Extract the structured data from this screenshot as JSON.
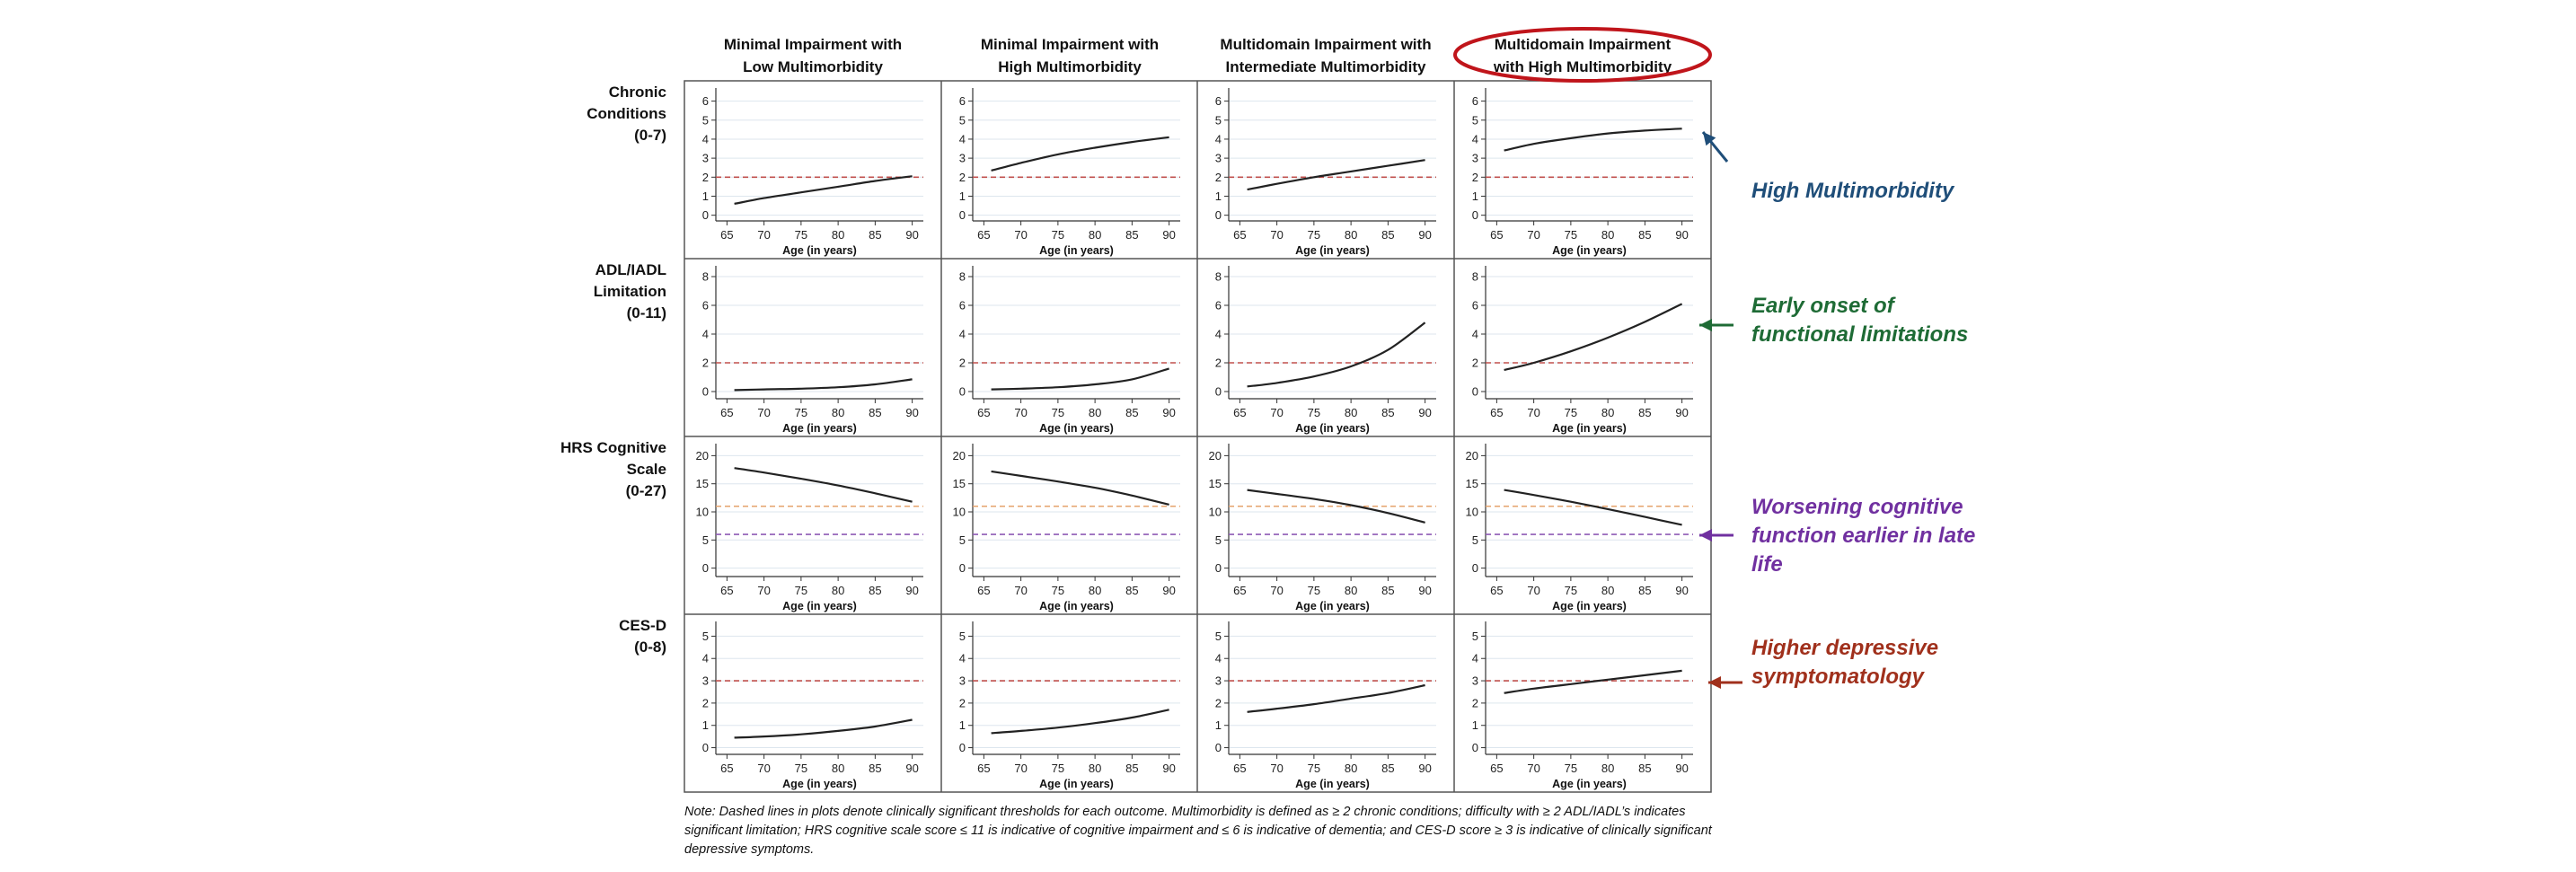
{
  "chart_data": {
    "type": "line",
    "col_headers": [
      [
        "Minimal Impairment with",
        "Low Multimorbidity"
      ],
      [
        "Minimal Impairment with",
        "High Multimorbidity"
      ],
      [
        "Multidomain Impairment with",
        "Intermediate Multimorbidity"
      ],
      [
        "Multidomain Impairment",
        "with High Multimorbidity"
      ]
    ],
    "highlighted_col": 3,
    "highlight_color": "#c0151b",
    "xlabel": "Age (in years)",
    "x_ticks": [
      65,
      70,
      75,
      80,
      85,
      90
    ],
    "x_range": [
      63.5,
      91.5
    ],
    "grid": "horizontal",
    "rows": [
      {
        "label": [
          "Chronic",
          "Conditions",
          "(0-7)"
        ],
        "ylim": [
          -0.3,
          6.5
        ],
        "y_ticks": [
          0,
          1,
          2,
          3,
          4,
          5,
          6
        ],
        "thresholds": [
          {
            "value": 2,
            "color": "#c0504d"
          }
        ],
        "series": [
          {
            "x": [
              66,
              70,
              75,
              80,
              85,
              90
            ],
            "y": [
              0.6,
              0.9,
              1.2,
              1.5,
              1.8,
              2.05
            ]
          },
          {
            "x": [
              66,
              70,
              75,
              80,
              85,
              90
            ],
            "y": [
              2.35,
              2.75,
              3.2,
              3.55,
              3.85,
              4.1
            ]
          },
          {
            "x": [
              66,
              70,
              75,
              80,
              85,
              90
            ],
            "y": [
              1.35,
              1.65,
              2.0,
              2.3,
              2.6,
              2.9
            ]
          },
          {
            "x": [
              66,
              70,
              75,
              80,
              85,
              90
            ],
            "y": [
              3.4,
              3.75,
              4.05,
              4.3,
              4.45,
              4.55
            ]
          }
        ],
        "annotation": {
          "lines": [
            "High  Multimorbidity"
          ],
          "color": "#1f4e79"
        }
      },
      {
        "label": [
          "ADL/IADL",
          "Limitation",
          "(0-11)"
        ],
        "ylim": [
          -0.5,
          8.5
        ],
        "y_ticks": [
          0,
          2,
          4,
          6,
          8
        ],
        "thresholds": [
          {
            "value": 2,
            "color": "#c0504d"
          }
        ],
        "series": [
          {
            "x": [
              66,
              70,
              75,
              80,
              85,
              90
            ],
            "y": [
              0.1,
              0.15,
              0.2,
              0.3,
              0.5,
              0.85
            ]
          },
          {
            "x": [
              66,
              70,
              75,
              80,
              85,
              90
            ],
            "y": [
              0.15,
              0.2,
              0.3,
              0.5,
              0.85,
              1.6
            ]
          },
          {
            "x": [
              66,
              70,
              75,
              80,
              85,
              90
            ],
            "y": [
              0.35,
              0.6,
              1.05,
              1.75,
              2.9,
              4.8
            ]
          },
          {
            "x": [
              66,
              70,
              75,
              80,
              85,
              90
            ],
            "y": [
              1.5,
              2.0,
              2.8,
              3.75,
              4.85,
              6.1
            ]
          }
        ],
        "annotation": {
          "lines": [
            "Early onset of",
            "functional  limitations"
          ],
          "color": "#1e6b35"
        }
      },
      {
        "label": [
          "HRS Cognitive",
          "Scale",
          "(0-27)"
        ],
        "ylim": [
          -1.5,
          21.5
        ],
        "y_ticks": [
          0,
          5,
          10,
          15,
          20
        ],
        "thresholds": [
          {
            "value": 11,
            "color": "#e5a36d"
          },
          {
            "value": 6,
            "color": "#8e5bb5"
          }
        ],
        "series": [
          {
            "x": [
              66,
              70,
              75,
              80,
              85,
              90
            ],
            "y": [
              17.8,
              17.0,
              15.9,
              14.7,
              13.3,
              11.8
            ]
          },
          {
            "x": [
              66,
              70,
              75,
              80,
              85,
              90
            ],
            "y": [
              17.2,
              16.4,
              15.4,
              14.3,
              12.9,
              11.3
            ]
          },
          {
            "x": [
              66,
              70,
              75,
              80,
              85,
              90
            ],
            "y": [
              13.9,
              13.2,
              12.3,
              11.2,
              9.8,
              8.1
            ]
          },
          {
            "x": [
              66,
              70,
              75,
              80,
              85,
              90
            ],
            "y": [
              13.9,
              13.0,
              11.8,
              10.5,
              9.1,
              7.7
            ]
          }
        ],
        "annotation": {
          "lines": [
            "Worsening  cognitive",
            "function earlier in late",
            "life"
          ],
          "color": "#7030a0"
        }
      },
      {
        "label": [
          "CES-D",
          "(0-8)"
        ],
        "ylim": [
          -0.3,
          5.5
        ],
        "y_ticks": [
          0,
          1,
          2,
          3,
          4,
          5
        ],
        "thresholds": [
          {
            "value": 3,
            "color": "#c0504d"
          }
        ],
        "series": [
          {
            "x": [
              66,
              70,
              75,
              80,
              85,
              90
            ],
            "y": [
              0.45,
              0.5,
              0.6,
              0.75,
              0.95,
              1.25
            ]
          },
          {
            "x": [
              66,
              70,
              75,
              80,
              85,
              90
            ],
            "y": [
              0.65,
              0.75,
              0.9,
              1.1,
              1.35,
              1.7
            ]
          },
          {
            "x": [
              66,
              70,
              75,
              80,
              85,
              90
            ],
            "y": [
              1.6,
              1.75,
              1.95,
              2.2,
              2.45,
              2.8
            ]
          },
          {
            "x": [
              66,
              70,
              75,
              80,
              85,
              90
            ],
            "y": [
              2.45,
              2.65,
              2.85,
              3.05,
              3.25,
              3.45
            ]
          }
        ],
        "annotation": {
          "lines": [
            "Higher depressive",
            "symptomatology"
          ],
          "color": "#a0301c"
        }
      }
    ]
  },
  "note": "Note: Dashed lines in plots denote clinically significant thresholds for each outcome. Multimorbidity is defined as ≥ 2 chronic conditions; difficulty with ≥ 2 ADL/IADL’s indicates significant limitation; HRS cognitive scale score ≤ 11 is  indicative of cognitive impairment and ≤ 6  is indicative of dementia; and CES-D score ≥ 3 is indicative of clinically significant depressive symptoms."
}
